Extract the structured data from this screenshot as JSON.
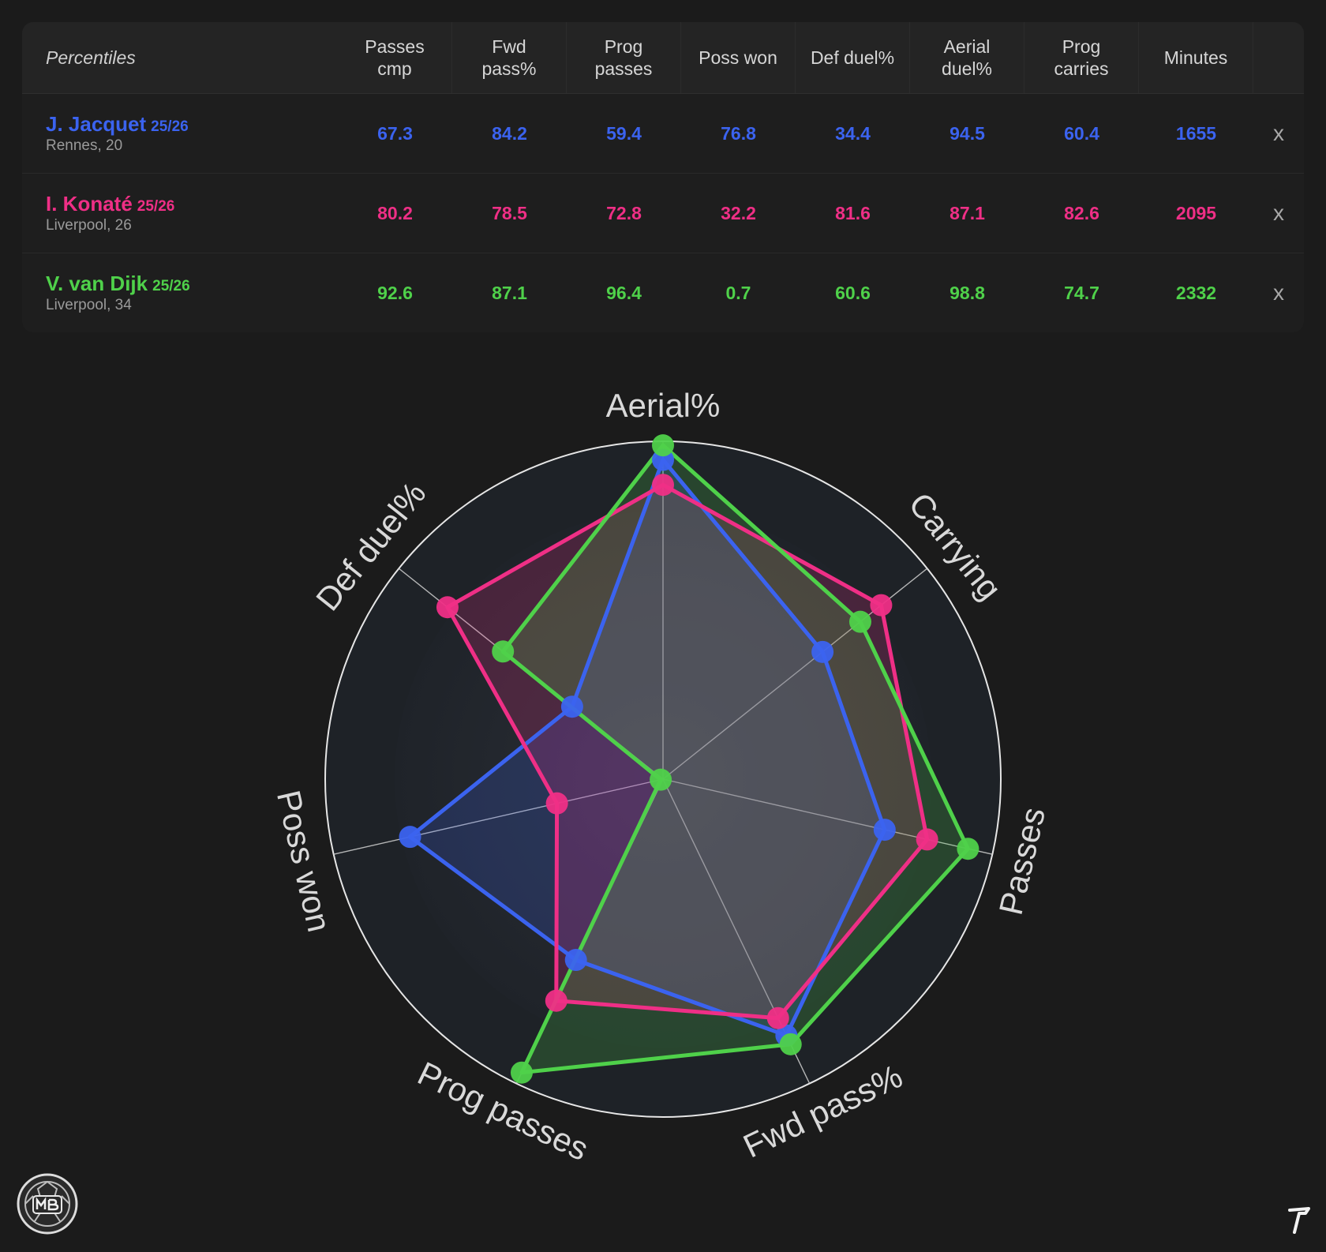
{
  "table": {
    "header_label": "Percentiles",
    "columns": [
      "Passes\ncmp",
      "Fwd\npass%",
      "Prog\npasses",
      "Poss won",
      "Def duel%",
      "Aerial\nduel%",
      "Prog\ncarries",
      "Minutes"
    ],
    "remove_label": "x",
    "rows": [
      {
        "name": "J. Jacquet",
        "season": "25/26",
        "meta": "Rennes, 20",
        "color": "#3b63ef",
        "values": [
          "67.3",
          "84.2",
          "59.4",
          "76.8",
          "34.4",
          "94.5",
          "60.4",
          "1655"
        ]
      },
      {
        "name": "I. Konaté",
        "season": "25/26",
        "meta": "Liverpool, 26",
        "color": "#ef2f86",
        "values": [
          "80.2",
          "78.5",
          "72.8",
          "32.2",
          "81.6",
          "87.1",
          "82.6",
          "2095"
        ]
      },
      {
        "name": "V. van Dijk",
        "season": "25/26",
        "meta": "Liverpool, 34",
        "color": "#4fd14a",
        "values": [
          "92.6",
          "87.1",
          "96.4",
          "0.7",
          "60.6",
          "98.8",
          "74.7",
          "2332"
        ]
      }
    ]
  },
  "chart_data": {
    "type": "radar",
    "axes": [
      "Aerial%",
      "Carrying",
      "Passes",
      "Fwd pass%",
      "Prog passes",
      "Poss won",
      "Def duel%"
    ],
    "range": [
      0,
      100
    ],
    "series": [
      {
        "name": "J. Jacquet",
        "color": "#3b63ef",
        "values": [
          94.5,
          60.4,
          67.3,
          84.2,
          59.4,
          76.8,
          34.4
        ]
      },
      {
        "name": "I. Konaté",
        "color": "#ef2f86",
        "values": [
          87.1,
          82.6,
          80.2,
          78.5,
          72.8,
          32.2,
          81.6
        ]
      },
      {
        "name": "V. van Dijk",
        "color": "#4fd14a",
        "values": [
          98.8,
          74.7,
          92.6,
          87.1,
          96.4,
          0.7,
          60.6
        ]
      }
    ]
  }
}
